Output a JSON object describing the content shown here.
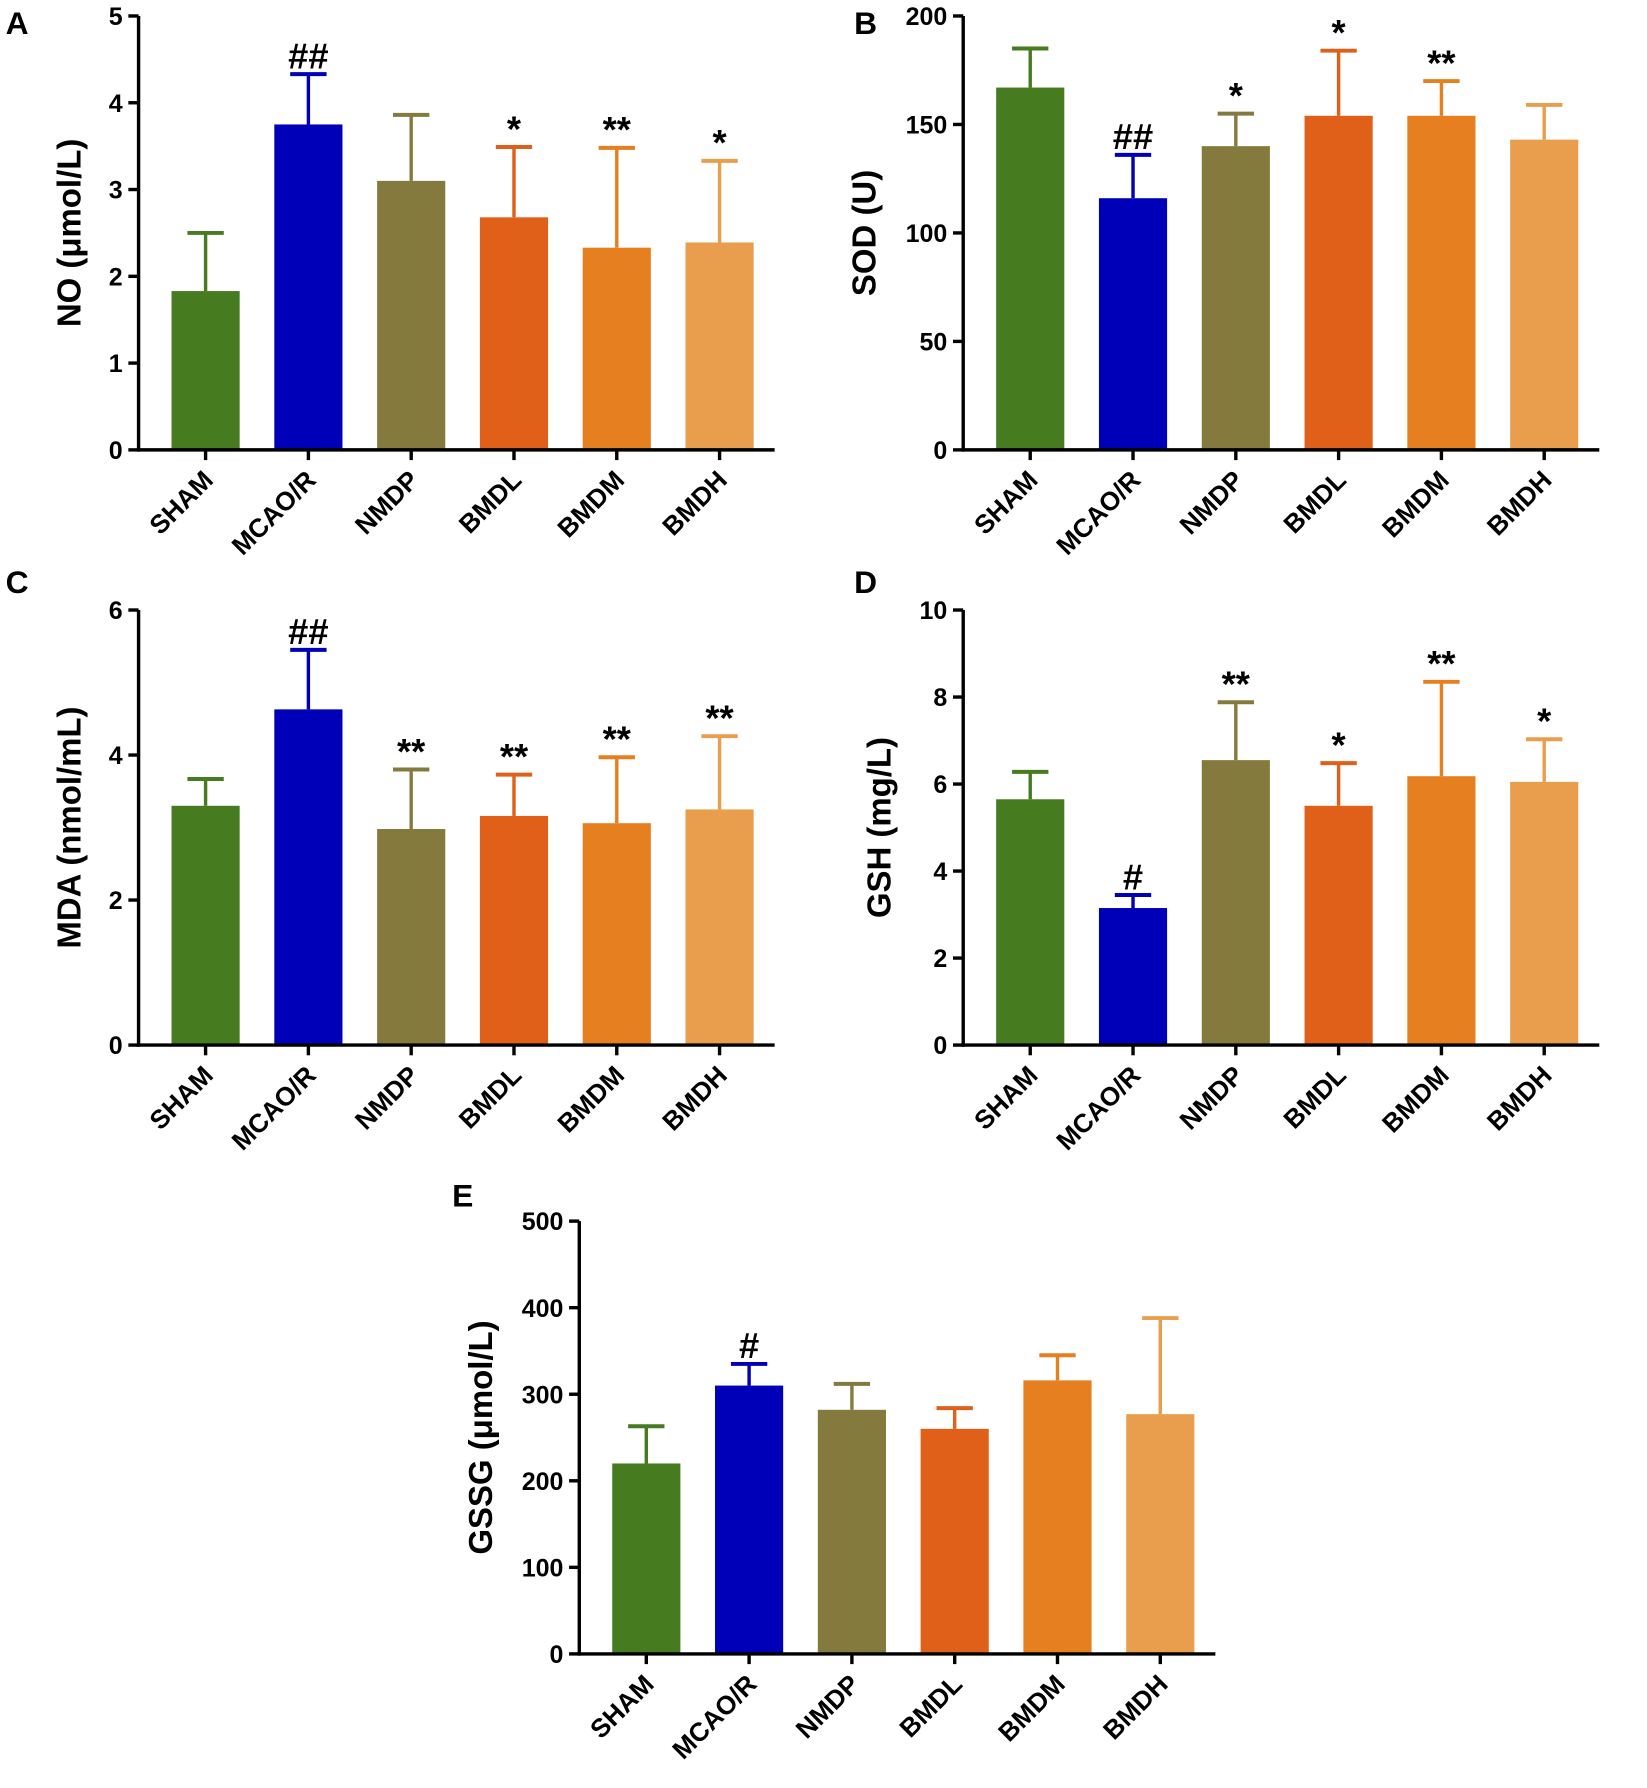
{
  "colors": [
    "#477b20",
    "#0000b8",
    "#857a3e",
    "#e0601a",
    "#e57f20",
    "#e89e4c"
  ],
  "chart_data": [
    {
      "type": "bar",
      "panel": "A",
      "ylabel": "NO (μmol/L)",
      "ylim": [
        0,
        5
      ],
      "yticks": [
        0,
        1,
        2,
        3,
        4,
        5
      ],
      "categories": [
        "SHAM",
        "MCAO/R",
        "NMDP",
        "BMDL",
        "BMDM",
        "BMDH"
      ],
      "values": [
        1.83,
        3.75,
        3.1,
        2.68,
        2.33,
        2.39
      ],
      "error_upper": [
        2.5,
        4.33,
        3.86,
        3.49,
        3.48,
        3.33
      ],
      "annotations": [
        "",
        "##",
        "",
        "*",
        "**",
        "*"
      ]
    },
    {
      "type": "bar",
      "panel": "B",
      "ylabel": "SOD (U)",
      "ylim": [
        0,
        200
      ],
      "yticks": [
        0,
        50,
        100,
        150,
        200
      ],
      "categories": [
        "SHAM",
        "MCAO/R",
        "NMDP",
        "BMDL",
        "BMDM",
        "BMDH"
      ],
      "values": [
        167,
        116,
        140,
        154,
        154,
        143
      ],
      "error_upper": [
        185,
        136,
        155,
        184,
        170,
        159
      ],
      "annotations": [
        "",
        "##",
        "*",
        "*",
        "**",
        ""
      ]
    },
    {
      "type": "bar",
      "panel": "C",
      "ylabel": "MDA (nmol/mL)",
      "ylim": [
        0,
        6
      ],
      "yticks": [
        0,
        2,
        4,
        6
      ],
      "categories": [
        "SHAM",
        "MCAO/R",
        "NMDP",
        "BMDL",
        "BMDM",
        "BMDH"
      ],
      "values": [
        3.3,
        4.63,
        2.98,
        3.16,
        3.06,
        3.25
      ],
      "error_upper": [
        3.67,
        5.45,
        3.8,
        3.73,
        3.97,
        4.26
      ],
      "annotations": [
        "",
        "##",
        "**",
        "**",
        "**",
        "**"
      ]
    },
    {
      "type": "bar",
      "panel": "D",
      "ylabel": "GSH (mg/L)",
      "ylim": [
        0,
        10
      ],
      "yticks": [
        0,
        2,
        4,
        6,
        8,
        10
      ],
      "categories": [
        "SHAM",
        "MCAO/R",
        "NMDP",
        "BMDL",
        "BMDM",
        "BMDH"
      ],
      "values": [
        5.65,
        3.15,
        6.55,
        5.5,
        6.18,
        6.05
      ],
      "error_upper": [
        6.28,
        3.45,
        7.88,
        6.48,
        8.35,
        7.03
      ],
      "annotations": [
        "",
        "#",
        "**",
        "*",
        "**",
        "*"
      ]
    },
    {
      "type": "bar",
      "panel": "E",
      "ylabel": "GSSG (μmol/L)",
      "ylim": [
        0,
        500
      ],
      "yticks": [
        0,
        100,
        200,
        300,
        400,
        500
      ],
      "categories": [
        "SHAM",
        "MCAO/R",
        "NMDP",
        "BMDL",
        "BMDM",
        "BMDH"
      ],
      "values": [
        220,
        310,
        282,
        260,
        316,
        277
      ],
      "error_upper": [
        263,
        335,
        312,
        284,
        345,
        388
      ],
      "annotations": [
        "",
        "#",
        "",
        "",
        "",
        ""
      ]
    }
  ]
}
